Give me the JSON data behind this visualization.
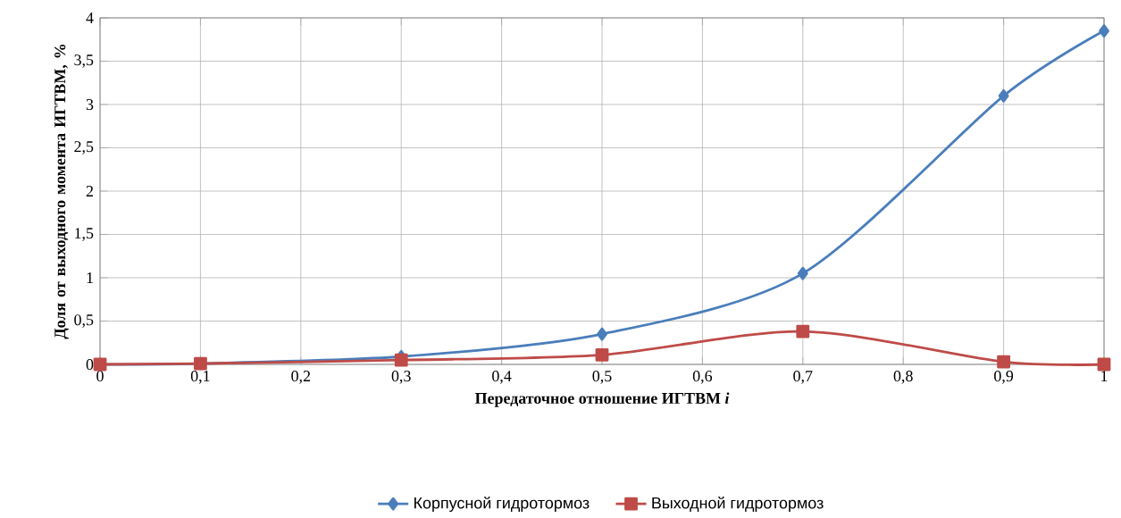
{
  "chart_data": {
    "type": "line",
    "xlabel": "Передаточное отношение ИГТВМ *i*",
    "ylabel": "Доля от выходного момента ИГТВМ, %",
    "x": [
      0,
      0.1,
      0.3,
      0.5,
      0.7,
      0.9,
      1
    ],
    "series": [
      {
        "name": "Корпусной гидротормоз",
        "color": "#4a7ebb",
        "marker": "diamond",
        "values": [
          0,
          0.01,
          0.09,
          0.35,
          1.05,
          3.1,
          3.85
        ]
      },
      {
        "name": "Выходной гидротормоз",
        "color": "#be4b48",
        "marker": "square",
        "values": [
          0,
          0.01,
          0.05,
          0.11,
          0.38,
          0.03,
          0
        ]
      }
    ],
    "xlim": [
      0,
      1
    ],
    "ylim": [
      0,
      4
    ],
    "xticks": [
      0,
      {
        "value": 0.1,
        "label": "0,1"
      },
      {
        "value": 0.2,
        "label": "0,2"
      },
      {
        "value": 0.3,
        "label": "0,3"
      },
      {
        "value": 0.4,
        "label": "0,4"
      },
      {
        "value": 0.5,
        "label": "0,5"
      },
      {
        "value": 0.6,
        "label": "0,6"
      },
      {
        "value": 0.7,
        "label": "0,7"
      },
      {
        "value": 0.8,
        "label": "0,8"
      },
      {
        "value": 0.9,
        "label": "0,9"
      },
      1
    ],
    "yticks": [
      0,
      {
        "value": 0.5,
        "label": "0,5"
      },
      1,
      {
        "value": 1.5,
        "label": "1,5"
      },
      2,
      {
        "value": 2.5,
        "label": "2,5"
      },
      3,
      {
        "value": 3.5,
        "label": "3,5"
      },
      4
    ],
    "grid": true,
    "legend": "bottom",
    "line_style": "solid"
  }
}
